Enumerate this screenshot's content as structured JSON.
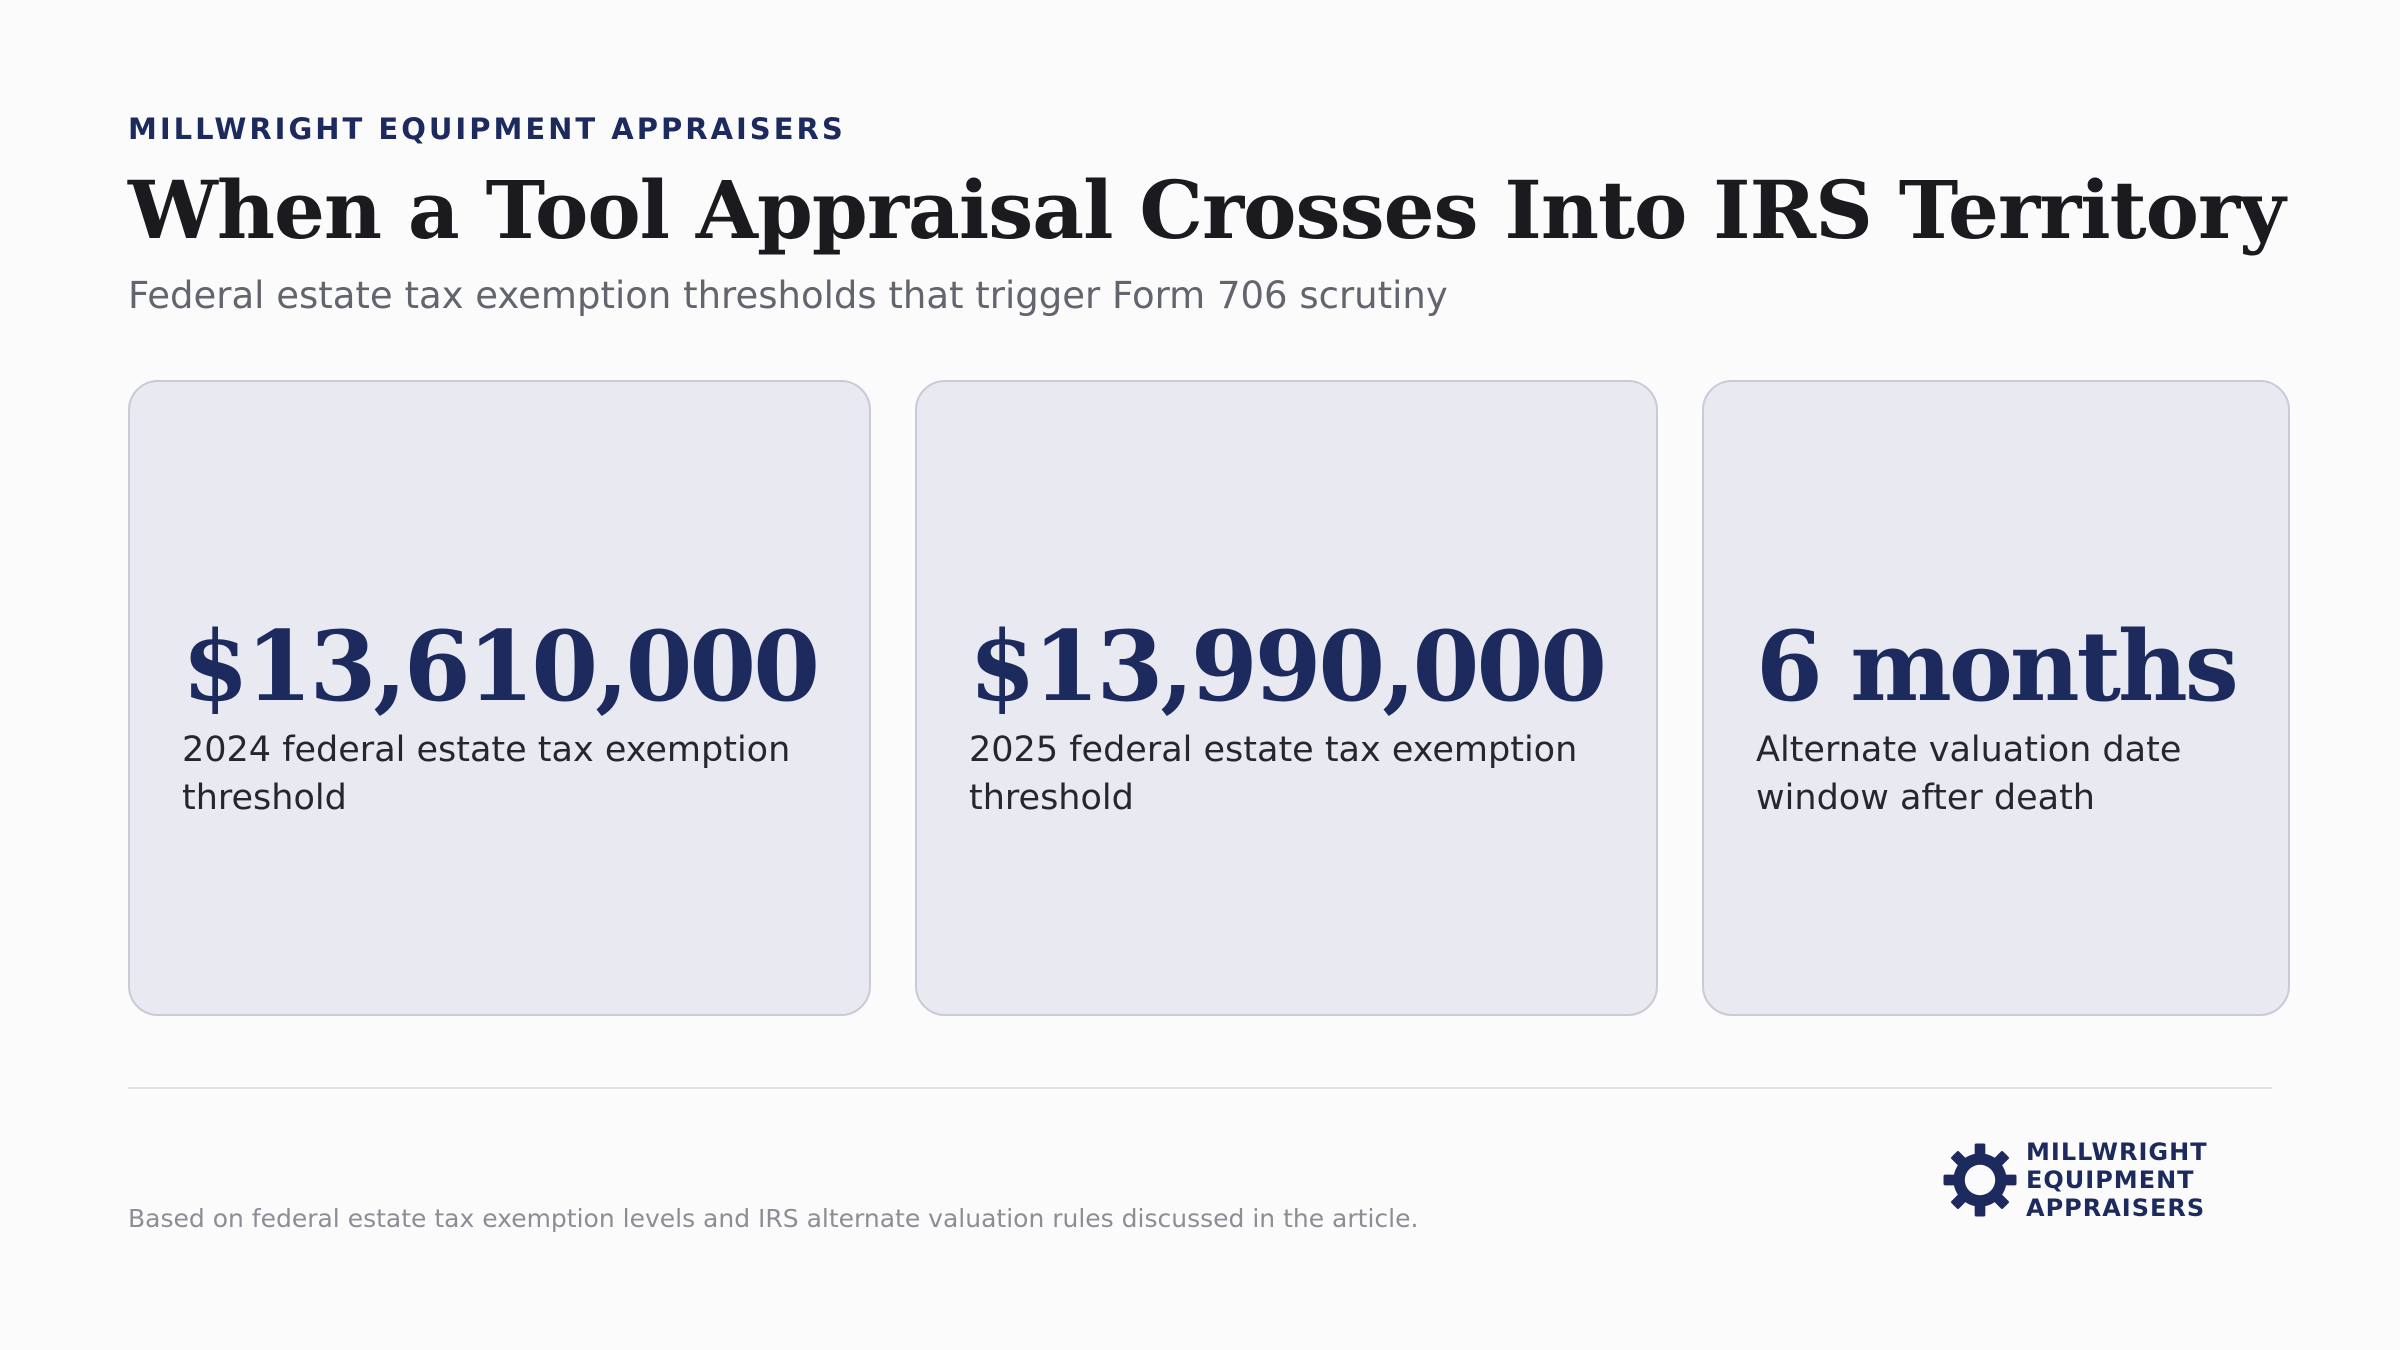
{
  "header": {
    "eyebrow": "MILLWRIGHT EQUIPMENT APPRAISERS",
    "title": "When a Tool Appraisal Crosses Into IRS Territory",
    "subtitle": "Federal estate tax exemption thresholds that trigger Form 706 scrutiny"
  },
  "stats": [
    {
      "value": "$13,610,000",
      "label": "2024 federal estate tax exemption threshold"
    },
    {
      "value": "$13,990,000",
      "label": "2025 federal estate tax exemption threshold"
    },
    {
      "value": "6 months",
      "label": "Alternate valuation date window after death"
    }
  ],
  "footer": {
    "source_note": "Based on federal estate tax exemption levels and IRS alternate valuation rules discussed in the article.",
    "logo_lines": [
      "MILLWRIGHT",
      "EQUIPMENT",
      "APPRAISERS"
    ]
  },
  "colors": {
    "accent": "#1c2a5e",
    "card_background": "#e9eaf1",
    "page_background": "#fbfbfc"
  },
  "icons": {
    "logo": "gear-icon"
  }
}
